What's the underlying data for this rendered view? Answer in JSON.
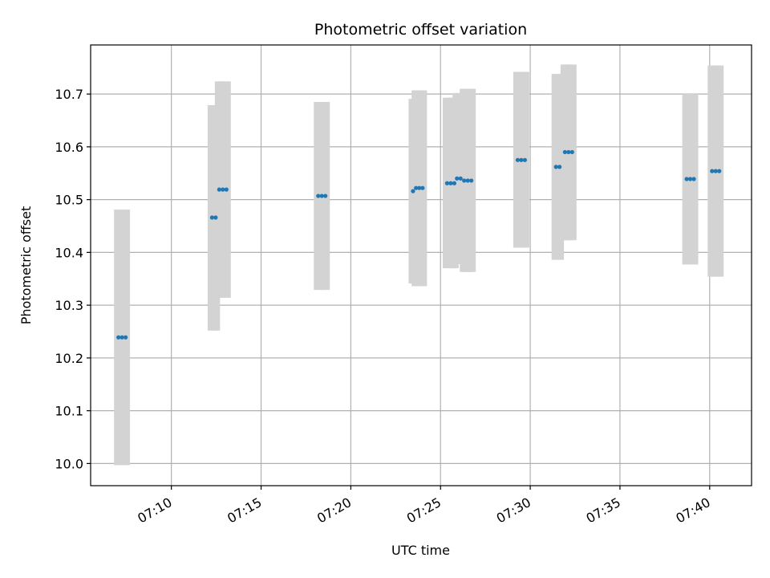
{
  "chart_data": {
    "type": "scatter",
    "title": "Photometric offset variation",
    "xlabel": "UTC time",
    "ylabel": "Photometric offset",
    "xlim": [
      "07:05:30",
      "07:42:20"
    ],
    "ylim": [
      9.958,
      10.793
    ],
    "x_ticks": [
      "07:10",
      "07:15",
      "07:20",
      "07:25",
      "07:30",
      "07:35",
      "07:40"
    ],
    "y_ticks": [
      10.0,
      10.1,
      10.2,
      10.3,
      10.4,
      10.5,
      10.6,
      10.7
    ],
    "y_tick_labels": [
      "10.0",
      "10.1",
      "10.2",
      "10.3",
      "10.4",
      "10.5",
      "10.6",
      "10.7"
    ],
    "grid": true,
    "colors": {
      "point": "#1f77b4",
      "errorbar": "#d3d3d3",
      "grid": "#b0b0b0"
    },
    "points": [
      {
        "x": "07:07:03",
        "y": 10.239,
        "yerr_low": 9.997,
        "yerr_high": 10.481
      },
      {
        "x": "07:07:15",
        "y": 10.239,
        "yerr_low": 9.997,
        "yerr_high": 10.481
      },
      {
        "x": "07:07:27",
        "y": 10.239,
        "yerr_low": 9.997,
        "yerr_high": 10.481
      },
      {
        "x": "07:12:16",
        "y": 10.466,
        "yerr_low": 10.252,
        "yerr_high": 10.679
      },
      {
        "x": "07:12:28",
        "y": 10.466,
        "yerr_low": 10.252,
        "yerr_high": 10.679
      },
      {
        "x": "07:12:40",
        "y": 10.519,
        "yerr_low": 10.314,
        "yerr_high": 10.724
      },
      {
        "x": "07:12:52",
        "y": 10.519,
        "yerr_low": 10.314,
        "yerr_high": 10.724
      },
      {
        "x": "07:13:04",
        "y": 10.519,
        "yerr_low": 10.314,
        "yerr_high": 10.724
      },
      {
        "x": "07:18:11",
        "y": 10.507,
        "yerr_low": 10.329,
        "yerr_high": 10.685
      },
      {
        "x": "07:18:23",
        "y": 10.507,
        "yerr_low": 10.329,
        "yerr_high": 10.685
      },
      {
        "x": "07:18:35",
        "y": 10.507,
        "yerr_low": 10.329,
        "yerr_high": 10.685
      },
      {
        "x": "07:23:28",
        "y": 10.516,
        "yerr_low": 10.341,
        "yerr_high": 10.691
      },
      {
        "x": "07:23:38",
        "y": 10.522,
        "yerr_low": 10.336,
        "yerr_high": 10.707
      },
      {
        "x": "07:23:49",
        "y": 10.522,
        "yerr_low": 10.336,
        "yerr_high": 10.707
      },
      {
        "x": "07:24:00",
        "y": 10.522,
        "yerr_low": 10.336,
        "yerr_high": 10.707
      },
      {
        "x": "07:25:22",
        "y": 10.531,
        "yerr_low": 10.37,
        "yerr_high": 10.693
      },
      {
        "x": "07:25:34",
        "y": 10.531,
        "yerr_low": 10.37,
        "yerr_high": 10.693
      },
      {
        "x": "07:25:46",
        "y": 10.531,
        "yerr_low": 10.37,
        "yerr_high": 10.693
      },
      {
        "x": "07:25:55",
        "y": 10.54,
        "yerr_low": 10.378,
        "yerr_high": 10.702
      },
      {
        "x": "07:26:07",
        "y": 10.54,
        "yerr_low": 10.378,
        "yerr_high": 10.702
      },
      {
        "x": "07:26:19",
        "y": 10.536,
        "yerr_low": 10.363,
        "yerr_high": 10.71
      },
      {
        "x": "07:26:31",
        "y": 10.536,
        "yerr_low": 10.363,
        "yerr_high": 10.71
      },
      {
        "x": "07:26:43",
        "y": 10.536,
        "yerr_low": 10.363,
        "yerr_high": 10.71
      },
      {
        "x": "07:29:18",
        "y": 10.575,
        "yerr_low": 10.409,
        "yerr_high": 10.742
      },
      {
        "x": "07:29:30",
        "y": 10.575,
        "yerr_low": 10.409,
        "yerr_high": 10.742
      },
      {
        "x": "07:29:42",
        "y": 10.575,
        "yerr_low": 10.409,
        "yerr_high": 10.742
      },
      {
        "x": "07:31:26",
        "y": 10.562,
        "yerr_low": 10.386,
        "yerr_high": 10.738
      },
      {
        "x": "07:31:38",
        "y": 10.562,
        "yerr_low": 10.386,
        "yerr_high": 10.738
      },
      {
        "x": "07:31:56",
        "y": 10.59,
        "yerr_low": 10.423,
        "yerr_high": 10.756
      },
      {
        "x": "07:32:08",
        "y": 10.59,
        "yerr_low": 10.423,
        "yerr_high": 10.756
      },
      {
        "x": "07:32:20",
        "y": 10.59,
        "yerr_low": 10.423,
        "yerr_high": 10.756
      },
      {
        "x": "07:38:43",
        "y": 10.539,
        "yerr_low": 10.377,
        "yerr_high": 10.7
      },
      {
        "x": "07:38:55",
        "y": 10.539,
        "yerr_low": 10.377,
        "yerr_high": 10.7
      },
      {
        "x": "07:39:07",
        "y": 10.539,
        "yerr_low": 10.377,
        "yerr_high": 10.7
      },
      {
        "x": "07:40:08",
        "y": 10.554,
        "yerr_low": 10.354,
        "yerr_high": 10.754
      },
      {
        "x": "07:40:20",
        "y": 10.554,
        "yerr_low": 10.354,
        "yerr_high": 10.754
      },
      {
        "x": "07:40:32",
        "y": 10.554,
        "yerr_low": 10.354,
        "yerr_high": 10.754
      }
    ]
  }
}
